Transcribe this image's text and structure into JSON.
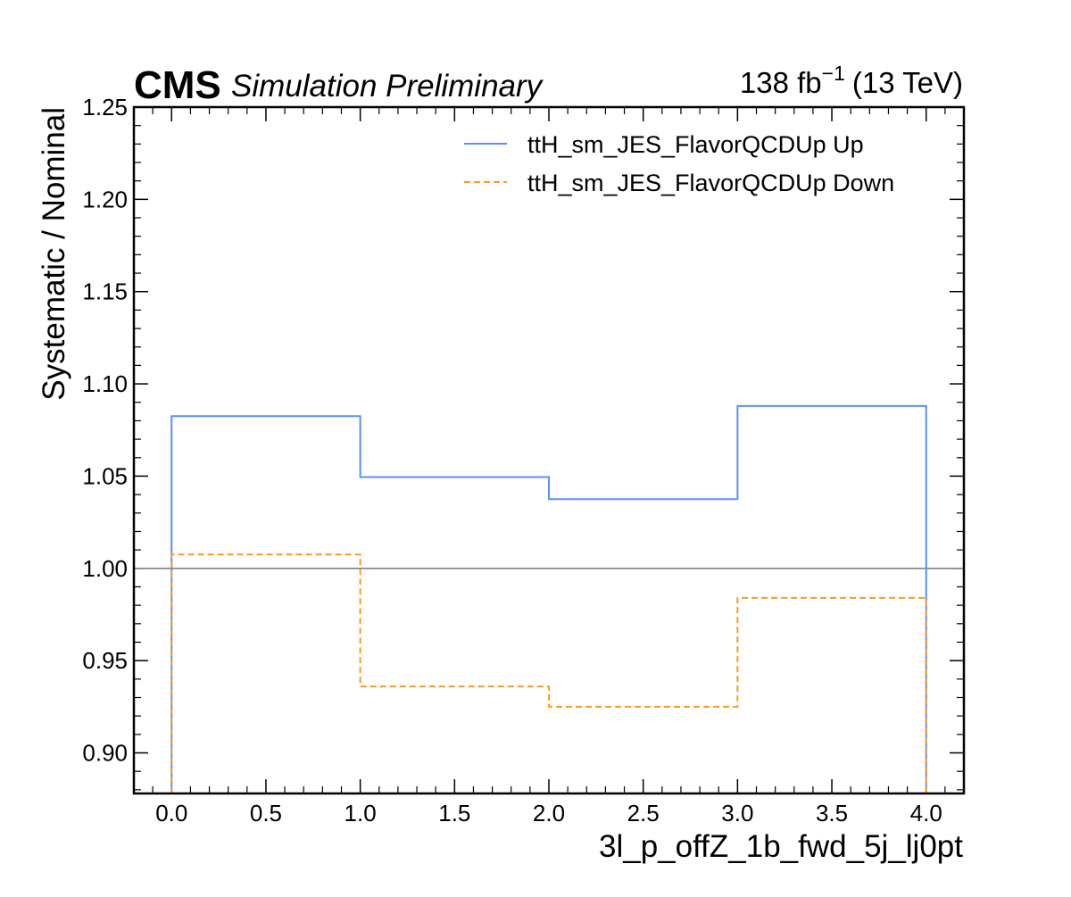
{
  "header": {
    "cms_label": "CMS",
    "cms_sublabel": "Simulation Preliminary",
    "lumi_value": "138 fb",
    "lumi_exponent": "−1",
    "lumi_energy": "(13 TeV)"
  },
  "chart_data": {
    "type": "line",
    "style": "step",
    "xlabel": "3l_p_offZ_1b_fwd_5j_lj0pt",
    "ylabel": "Systematic / Nominal",
    "xlim": [
      -0.2,
      4.2
    ],
    "ylim": [
      0.878,
      1.25
    ],
    "xticks": [
      0.0,
      0.5,
      1.0,
      1.5,
      2.0,
      2.5,
      3.0,
      3.5,
      4.0
    ],
    "xtick_labels": [
      "0.0",
      "0.5",
      "1.0",
      "1.5",
      "2.0",
      "2.5",
      "3.0",
      "3.5",
      "4.0"
    ],
    "yticks": [
      0.9,
      0.95,
      1.0,
      1.05,
      1.1,
      1.15,
      1.2,
      1.25
    ],
    "ytick_labels": [
      "0.90",
      "0.95",
      "1.00",
      "1.05",
      "1.10",
      "1.15",
      "1.20",
      "1.25"
    ],
    "bin_edges": [
      0,
      1,
      2,
      3,
      4
    ],
    "reference_line": 1.0,
    "grid": false,
    "legend_position": "top-right",
    "series": [
      {
        "name": "ttH_sm_JES_FlavorQCDUp Up",
        "values": [
          1.0825,
          1.0495,
          1.0375,
          1.088
        ],
        "color": "#5790fc",
        "dash": "solid"
      },
      {
        "name": "ttH_sm_JES_FlavorQCDUp Down",
        "values": [
          1.0075,
          0.936,
          0.925,
          0.984
        ],
        "color": "#f89c20",
        "dash": "dashed"
      }
    ],
    "reference_color": "#808080"
  }
}
